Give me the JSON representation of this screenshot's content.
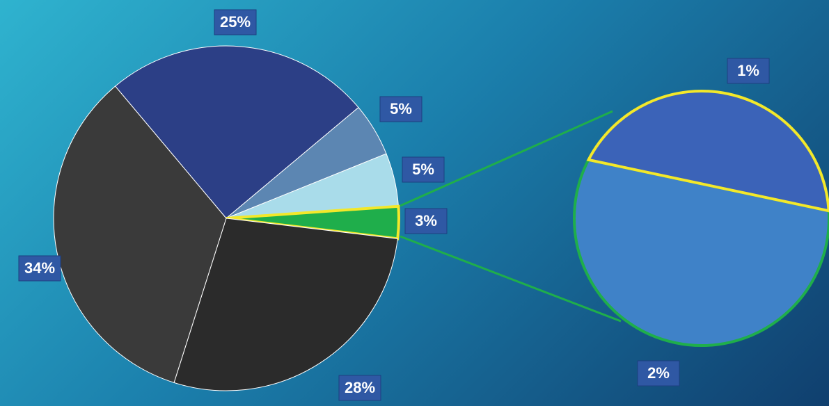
{
  "chart_data": [
    {
      "type": "pie",
      "values": [
        25,
        5,
        5,
        3,
        28,
        34
      ],
      "value_labels": [
        "25%",
        "5%",
        "5%",
        "3%",
        "28%",
        "34%"
      ],
      "colors": [
        "#2c3f86",
        "#5c86b2",
        "#a9dcea",
        "#1fae4b",
        "#2b2b2b",
        "#3a3a3a"
      ]
    },
    {
      "type": "pie",
      "values": [
        1,
        2
      ],
      "value_labels": [
        "1%",
        "2%"
      ],
      "colors": [
        "#3b63b8",
        "#3f82c8"
      ]
    }
  ]
}
